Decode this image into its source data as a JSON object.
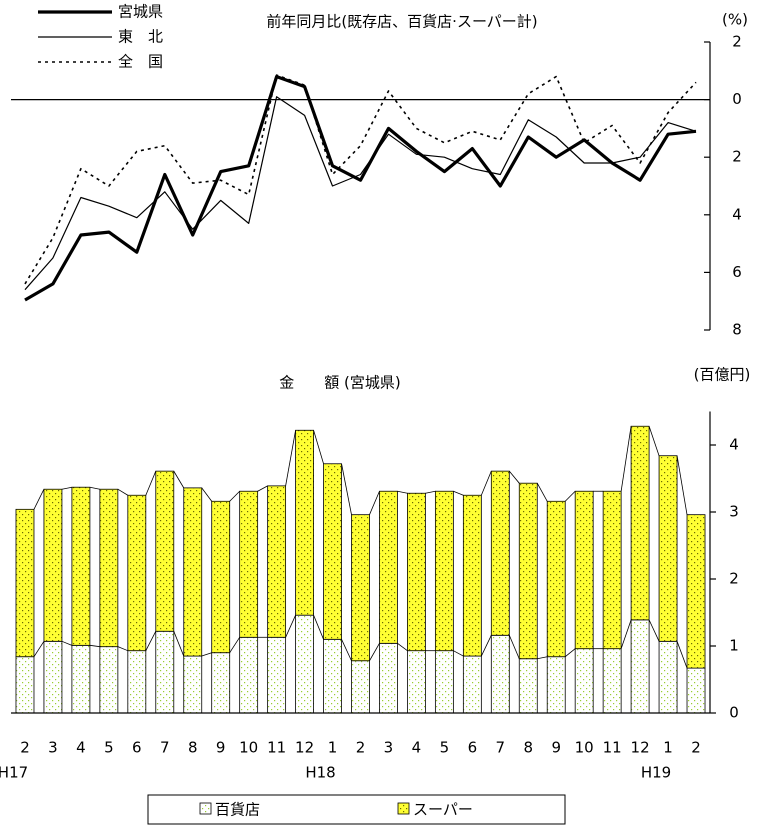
{
  "chart_data": [
    {
      "type": "line",
      "title": "前年同月比(既存店、百貨店·スーパー計)",
      "y_unit": "(%)",
      "ylim": [
        -8,
        2
      ],
      "yticks": [
        2,
        0,
        {
          "value": -2,
          "label": "2"
        },
        {
          "value": -4,
          "label": "4"
        },
        {
          "value": -6,
          "label": "6"
        },
        {
          "value": -8,
          "label": "8"
        }
      ],
      "zero_line": true,
      "series": [
        {
          "name": "宮城県",
          "color": "#000000",
          "line_width": 3.2,
          "dashed": false,
          "values": [
            -6.96,
            -6.4,
            -4.7,
            -4.6,
            -5.3,
            -2.6,
            -4.7,
            -2.5,
            -2.3,
            0.8,
            0.45,
            -2.3,
            -2.8,
            -1.0,
            -1.8,
            -2.5,
            -1.7,
            -3.0,
            -1.3,
            -2.0,
            -1.4,
            -2.2,
            -2.8,
            -1.2,
            -1.1
          ]
        },
        {
          "name": "東　北",
          "color": "#000000",
          "line_width": 1.2,
          "dashed": false,
          "values": [
            -6.6,
            -5.5,
            -3.4,
            -3.7,
            -4.1,
            -3.2,
            -4.5,
            -3.5,
            -4.3,
            0.1,
            -0.55,
            -3.0,
            -2.6,
            -1.2,
            -1.9,
            -2.0,
            -2.4,
            -2.6,
            -0.7,
            -1.3,
            -2.2,
            -2.2,
            -2.0,
            -0.8,
            -1.1
          ]
        },
        {
          "name": "全　国",
          "color": "#000000",
          "line_width": 1.6,
          "dashed": true,
          "values": [
            -6.4,
            -4.8,
            -2.4,
            -3.0,
            -1.8,
            -1.6,
            -2.9,
            -2.8,
            -3.3,
            0.85,
            0.5,
            -2.6,
            -1.6,
            0.3,
            -1.0,
            -1.5,
            -1.1,
            -1.4,
            0.2,
            0.8,
            -1.5,
            -0.9,
            -2.2,
            -0.45,
            0.6
          ]
        }
      ]
    },
    {
      "type": "bar",
      "stacked": true,
      "title": "金　　額 (宮城県)",
      "y_unit": "(百億円)",
      "categories": [
        "2",
        "3",
        "4",
        "5",
        "6",
        "7",
        "8",
        "9",
        "10",
        "11",
        "12",
        "1",
        "2",
        "3",
        "4",
        "5",
        "6",
        "7",
        "8",
        "9",
        "10",
        "11",
        "12",
        "1",
        "2"
      ],
      "year_labels": [
        "H17",
        null,
        null,
        null,
        null,
        null,
        null,
        null,
        null,
        null,
        null,
        "H18",
        null,
        null,
        null,
        null,
        null,
        null,
        null,
        null,
        null,
        null,
        null,
        "H19",
        null
      ],
      "ylim": [
        0,
        4.5
      ],
      "yticks": [
        0,
        1,
        2,
        3,
        4
      ],
      "series": [
        {
          "name": "百貨店",
          "color": "#ffffff",
          "dot_color": "#9acd32",
          "values": [
            0.84,
            1.07,
            1.01,
            0.99,
            0.93,
            1.22,
            0.85,
            0.9,
            1.13,
            1.13,
            1.46,
            1.1,
            0.78,
            1.04,
            0.93,
            0.93,
            0.85,
            1.16,
            0.81,
            0.84,
            0.96,
            0.96,
            1.39,
            1.07,
            0.67
          ]
        },
        {
          "name": "スーパー",
          "color": "#ffff33",
          "dot_color": "#6b6b00",
          "values": [
            2.2,
            2.27,
            2.36,
            2.35,
            2.32,
            2.39,
            2.51,
            2.26,
            2.18,
            2.26,
            2.76,
            2.62,
            2.18,
            2.27,
            2.35,
            2.38,
            2.4,
            2.45,
            2.62,
            2.32,
            2.35,
            2.35,
            2.89,
            2.77,
            2.29
          ]
        }
      ]
    }
  ]
}
